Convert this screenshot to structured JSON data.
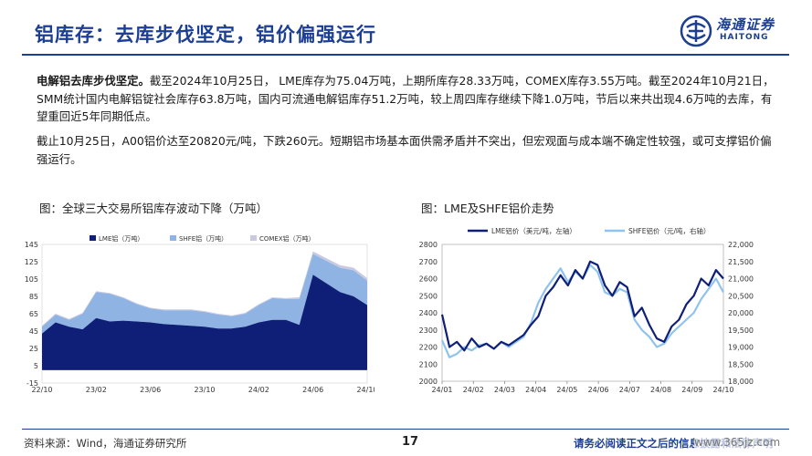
{
  "header": {
    "title": "铝库存：去库步伐坚定，铝价偏强运行",
    "logo_cn": "海通证券",
    "logo_en": "HAITONG",
    "accent_color": "#1c3f94"
  },
  "body": {
    "p1_lead": "电解铝去库步伐坚定。",
    "p1_text": "截至2024年10月25日， LME库存为75.04万吨，上期所库存28.33万吨，COMEX库存3.55万吨。截至2024年10月21日，SMM统计国内电解铝锭社会库存63.8万吨，国内可流通电解铝库存51.2万吨，较上周四库存继续下降1.0万吨，节后以来共出现4.6万吨的去库，有望重回近5年同期低点。",
    "p2_text": "截止10月25日，A00铝价达至20820元/吨，下跌260元。短期铝市场基本面供需矛盾并不突出，但宏观面与成本端不确定性较强，或可支撑铝价偏强运行。"
  },
  "figures": {
    "left_caption": "图：全球三大交易所铝库存波动下降（万吨）",
    "right_caption": "图：LME及SHFE铝价走势"
  },
  "chart_data": [
    {
      "type": "area",
      "title": "全球三大交易所铝库存波动下降（万吨）",
      "stacked": true,
      "x": [
        "22/10",
        "22/11",
        "22/12",
        "23/01",
        "23/02",
        "23/03",
        "23/04",
        "23/05",
        "23/06",
        "23/07",
        "23/08",
        "23/09",
        "23/10",
        "23/11",
        "23/12",
        "24/01",
        "24/02",
        "24/03",
        "24/04",
        "24/05",
        "24/06",
        "24/07",
        "24/08",
        "24/09",
        "24/10"
      ],
      "x_tick_labels": [
        "22/10",
        "23/02",
        "23/06",
        "23/10",
        "24/02",
        "24/06",
        "24/10"
      ],
      "y_ticks": [
        -15,
        5,
        25,
        45,
        65,
        85,
        105,
        125,
        145
      ],
      "ylim": [
        -15,
        145
      ],
      "series": [
        {
          "name": "LME铝（万吨）",
          "color": "#0f1f78",
          "values": [
            42,
            55,
            50,
            47,
            60,
            56,
            57,
            56,
            55,
            53,
            52,
            51,
            50,
            48,
            48,
            50,
            55,
            58,
            58,
            52,
            110,
            100,
            90,
            85,
            75
          ]
        },
        {
          "name": "SHFE铝（万吨）",
          "color": "#8fb4e3",
          "values": [
            8,
            9,
            8,
            18,
            30,
            32,
            26,
            20,
            16,
            16,
            17,
            18,
            17,
            16,
            14,
            15,
            20,
            25,
            24,
            30,
            24,
            26,
            28,
            30,
            28
          ]
        },
        {
          "name": "COMEX铝（万吨）",
          "color": "#c9c9df",
          "values": [
            1,
            1,
            1,
            1,
            1,
            1,
            1,
            1,
            1,
            1,
            1,
            1,
            1,
            1,
            1,
            1,
            1,
            1,
            1,
            2,
            3,
            3,
            3,
            3,
            3
          ]
        }
      ],
      "legend_position": "top"
    },
    {
      "type": "line",
      "title": "LME及SHFE铝价走势",
      "x_tick_labels": [
        "24/01",
        "24/02",
        "24/03",
        "24/04",
        "24/05",
        "24/06",
        "24/07",
        "24/08",
        "24/09",
        "24/10"
      ],
      "y_left_ticks": [
        2000,
        2100,
        2200,
        2300,
        2400,
        2500,
        2600,
        2700,
        2800
      ],
      "y_left_lim": [
        2000,
        2800
      ],
      "y_right_ticks": [
        "18,000",
        "18,500",
        "19,000",
        "19,500",
        "20,000",
        "20,500",
        "21,000",
        "21,500",
        "22,000"
      ],
      "y_right_lim": [
        18000,
        22000
      ],
      "series": [
        {
          "name": "LME铝价（美元/吨，左轴）",
          "axis": "left",
          "color": "#0f1f78",
          "values": [
            2390,
            2200,
            2230,
            2180,
            2250,
            2200,
            2220,
            2190,
            2230,
            2210,
            2240,
            2270,
            2330,
            2380,
            2500,
            2550,
            2620,
            2560,
            2650,
            2600,
            2700,
            2680,
            2560,
            2500,
            2580,
            2550,
            2380,
            2430,
            2330,
            2250,
            2230,
            2320,
            2360,
            2450,
            2500,
            2600,
            2560,
            2650,
            2600
          ]
        },
        {
          "name": "SHFE铝价（元/吨，右轴）",
          "axis": "right",
          "color": "#8fc3ee",
          "values": [
            19200,
            18700,
            18800,
            19000,
            18900,
            19050,
            19100,
            18950,
            19150,
            19000,
            19150,
            19300,
            19700,
            20300,
            20700,
            21000,
            21300,
            20900,
            21200,
            21000,
            21400,
            21200,
            20600,
            20500,
            20700,
            20600,
            19800,
            19500,
            19300,
            19000,
            19100,
            19400,
            19600,
            19800,
            20000,
            20400,
            20700,
            21000,
            20600
          ]
        }
      ],
      "legend_position": "top"
    }
  ],
  "footer": {
    "source": "资料来源：Wind，海通证券研究所",
    "page": "17",
    "note": "请务必阅读正文之后的信息披露和法律声明",
    "watermark": "www.365jz.com"
  }
}
